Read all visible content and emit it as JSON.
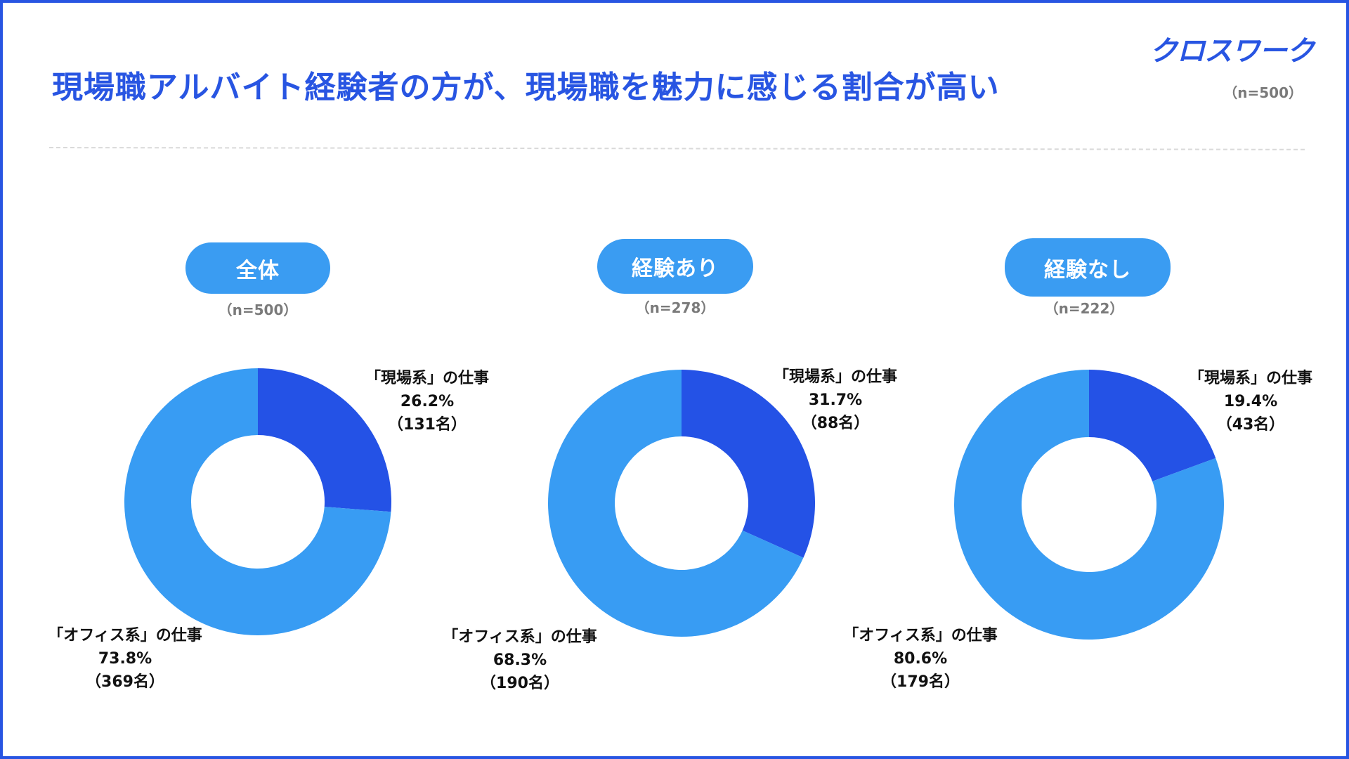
{
  "header": {
    "title": "現場職アルバイト経験者の方が、現場職を魅力に感じる割合が高い",
    "logo": "クロスワーク",
    "sample_size": "（n=500）"
  },
  "colors": {
    "frame": "#2855e2",
    "genba": "#2452e6",
    "office": "#389cf3",
    "pill": "#3a9cf2"
  },
  "chart_data": [
    {
      "type": "pie",
      "title": "全体",
      "sample": "（n=500）",
      "labels": [
        "「現場系」の仕事",
        "「オフィス系」の仕事"
      ],
      "values": [
        26.2,
        73.8
      ],
      "value_labels": [
        "26.2%",
        "73.8%"
      ],
      "counts": [
        "（131名）",
        "（369名）"
      ]
    },
    {
      "type": "pie",
      "title": "経験あり",
      "sample": "（n=278）",
      "labels": [
        "「現場系」の仕事",
        "「オフィス系」の仕事"
      ],
      "values": [
        31.7,
        68.3
      ],
      "value_labels": [
        "31.7%",
        "68.3%"
      ],
      "counts": [
        "（88名）",
        "（190名）"
      ]
    },
    {
      "type": "pie",
      "title": "経験なし",
      "sample": "（n=222）",
      "labels": [
        "「現場系」の仕事",
        "「オフィス系」の仕事"
      ],
      "values": [
        19.4,
        80.6
      ],
      "value_labels": [
        "19.4%",
        "80.6%"
      ],
      "counts": [
        "（43名）",
        "（179名）"
      ]
    }
  ]
}
